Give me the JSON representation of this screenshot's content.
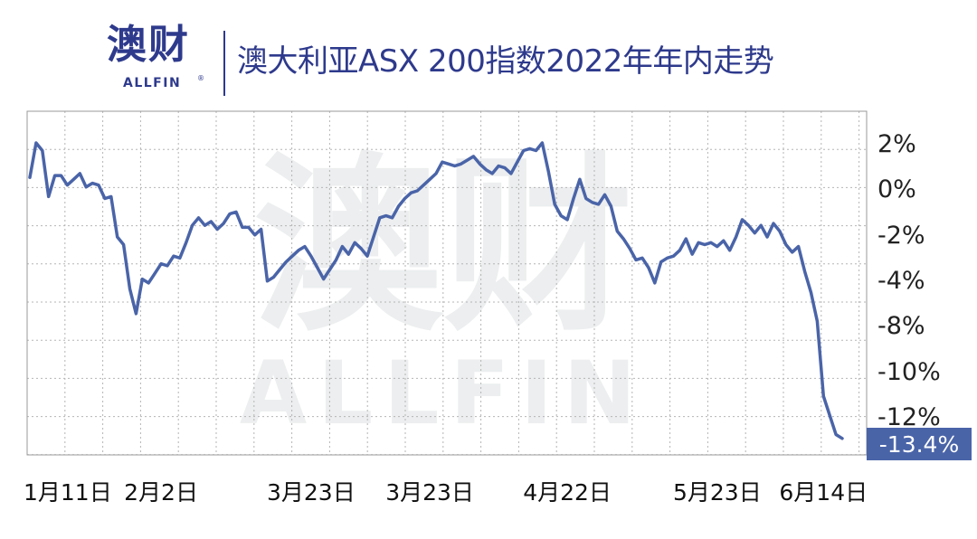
{
  "brand": {
    "logo_cn": "澳财",
    "logo_en": "ALLFIN",
    "registered_mark": "®",
    "watermark_cn": "澳财",
    "watermark_en": "ALLFIN"
  },
  "colors": {
    "line": "#4a64a8",
    "brand": "#2e3a8c",
    "grid": "#b5b5b5",
    "end_label_bg": "#4a64a8",
    "watermark": "#eceeef"
  },
  "chart_data": {
    "type": "line",
    "title": "澳大利亚ASX 200指数2022年年内走势",
    "xlabel": "",
    "ylabel": "",
    "grid": true,
    "y_tick_labels": [
      "2%",
      "0%",
      "-2%",
      "-4%",
      "-8%",
      "-10%",
      "-12%"
    ],
    "x_tick_labels": [
      "1月11日",
      "2月2日",
      "3月23日",
      "3月23日",
      "4月22日",
      "5月23日",
      "6月14日"
    ],
    "x_tick_index": [
      0,
      21,
      45,
      64,
      86,
      110,
      127
    ],
    "end_label": "-13.4%",
    "series": [
      {
        "name": "",
        "values": [
          0.2,
          2.0,
          1.6,
          -0.8,
          0.3,
          0.3,
          -0.2,
          0.1,
          0.4,
          -0.3,
          -0.1,
          -0.2,
          -0.9,
          -0.8,
          -2.9,
          -3.3,
          -5.6,
          -6.9,
          -5.1,
          -5.3,
          -4.8,
          -4.3,
          -4.4,
          -3.9,
          -4.0,
          -3.2,
          -2.3,
          -1.9,
          -2.3,
          -2.1,
          -2.5,
          -2.2,
          -1.7,
          -1.6,
          -2.4,
          -2.4,
          -2.8,
          -2.5,
          -5.2,
          -5.0,
          -4.6,
          -4.2,
          -3.9,
          -3.6,
          -3.4,
          -3.9,
          -4.5,
          -5.1,
          -4.6,
          -4.1,
          -3.4,
          -3.8,
          -3.2,
          -3.5,
          -3.9,
          -2.9,
          -1.9,
          -1.8,
          -1.9,
          -1.3,
          -0.9,
          -0.6,
          -0.5,
          -0.2,
          0.1,
          0.4,
          1.0,
          0.9,
          0.8,
          0.9,
          1.1,
          1.3,
          0.9,
          0.6,
          0.4,
          0.8,
          0.7,
          0.4,
          1.0,
          1.6,
          1.7,
          1.6,
          2.0,
          0.5,
          -1.2,
          -1.8,
          -2.0,
          -0.9,
          0.1,
          -0.9,
          -1.1,
          -1.2,
          -0.7,
          -1.3,
          -2.6,
          -3.0,
          -3.5,
          -4.1,
          -4.0,
          -4.5,
          -5.3,
          -4.2,
          -4.0,
          -3.9,
          -3.6,
          -3.0,
          -3.8,
          -3.2,
          -3.3,
          -3.2,
          -3.4,
          -3.1,
          -3.6,
          -2.9,
          -2.0,
          -2.3,
          -2.7,
          -2.3,
          -2.9,
          -2.2,
          -2.6,
          -3.3,
          -3.7,
          -3.4,
          -4.7,
          -5.8,
          -7.3,
          -11.2,
          -12.2,
          -13.2,
          -13.4
        ]
      }
    ]
  }
}
